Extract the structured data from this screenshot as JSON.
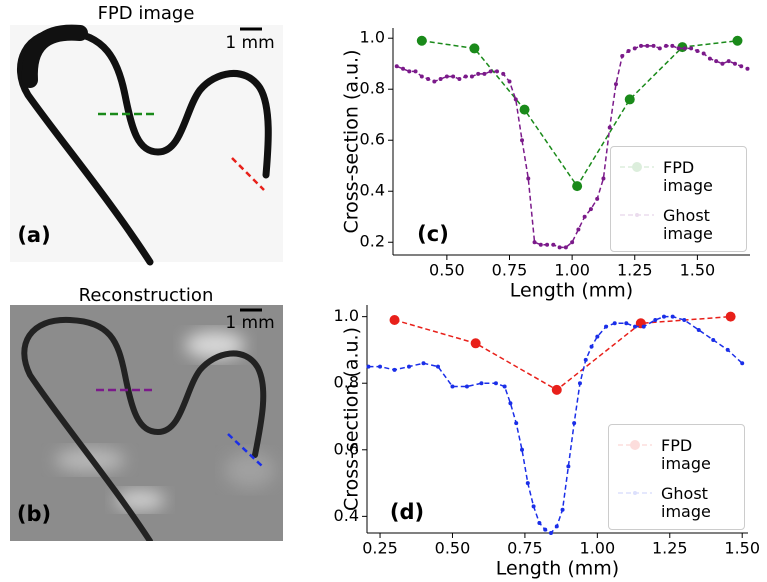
{
  "panels": [
    {
      "title": "FPD image",
      "scale_label": "1 mm",
      "label": "(a)"
    },
    {
      "title": "Reconstruction",
      "scale_label": "1 mm",
      "label": "(b)"
    }
  ],
  "chart_data": [
    {
      "type": "line",
      "label": "(c)",
      "xlabel": "Length (mm)",
      "ylabel": "Cross-section (a.u.)",
      "xlim": [
        0.285,
        1.71
      ],
      "ylim": [
        0.15,
        1.04
      ],
      "xticks": [
        {
          "value": 0.5,
          "label": "0.50"
        },
        0.75,
        {
          "value": 1,
          "label": "1.00"
        },
        1.25,
        {
          "value": 1.5,
          "label": "1.50"
        }
      ],
      "yticks": [
        0.2,
        0.4,
        0.6,
        0.8,
        {
          "value": 1,
          "label": "1.0"
        }
      ],
      "legend": "lower right",
      "series": [
        {
          "name": "FPD image",
          "color": "#1a8a1a",
          "x": [
            0.4,
            0.61,
            0.81,
            1.02,
            1.23,
            1.44,
            1.66
          ],
          "values": [
            0.99,
            0.96,
            0.72,
            0.42,
            0.76,
            0.965,
            0.99
          ]
        },
        {
          "name": "Ghost image",
          "color": "#7b1a8a",
          "x": [
            0.3,
            0.325,
            0.35,
            0.375,
            0.4,
            0.425,
            0.45,
            0.475,
            0.5,
            0.525,
            0.55,
            0.575,
            0.6,
            0.625,
            0.65,
            0.675,
            0.7,
            0.725,
            0.75,
            0.775,
            0.8,
            0.825,
            0.85,
            0.875,
            0.9,
            0.925,
            0.95,
            0.975,
            1.0,
            1.025,
            1.05,
            1.075,
            1.1,
            1.125,
            1.15,
            1.175,
            1.2,
            1.225,
            1.25,
            1.275,
            1.3,
            1.325,
            1.35,
            1.375,
            1.4,
            1.425,
            1.45,
            1.475,
            1.5,
            1.525,
            1.55,
            1.575,
            1.6,
            1.625,
            1.65,
            1.675,
            1.7
          ],
          "values": [
            0.89,
            0.88,
            0.87,
            0.87,
            0.85,
            0.84,
            0.83,
            0.84,
            0.85,
            0.85,
            0.84,
            0.85,
            0.85,
            0.86,
            0.86,
            0.87,
            0.87,
            0.86,
            0.83,
            0.76,
            0.6,
            0.45,
            0.2,
            0.19,
            0.19,
            0.19,
            0.18,
            0.18,
            0.2,
            0.25,
            0.3,
            0.33,
            0.37,
            0.45,
            0.65,
            0.82,
            0.93,
            0.95,
            0.96,
            0.97,
            0.97,
            0.97,
            0.96,
            0.97,
            0.97,
            0.96,
            0.96,
            0.96,
            0.95,
            0.94,
            0.92,
            0.91,
            0.9,
            0.91,
            0.9,
            0.89,
            0.88
          ]
        }
      ]
    },
    {
      "type": "line",
      "label": "(d)",
      "xlabel": "Length (mm)",
      "ylabel": "Cross-section (a.u.)",
      "xlim": [
        0.205,
        1.52
      ],
      "ylim": [
        0.35,
        1.035
      ],
      "xticks": [
        0.25,
        {
          "value": 0.5,
          "label": "0.50"
        },
        0.75,
        {
          "value": 1,
          "label": "1.00"
        },
        1.25,
        {
          "value": 1.5,
          "label": "1.50"
        }
      ],
      "yticks": [
        0.4,
        0.6,
        0.8,
        {
          "value": 1,
          "label": "1.0"
        }
      ],
      "legend": "lower right",
      "series": [
        {
          "name": "FPD image",
          "color": "#e8201a",
          "x": [
            0.3,
            0.58,
            0.86,
            1.15,
            1.46
          ],
          "values": [
            0.99,
            0.92,
            0.78,
            0.98,
            1.0
          ]
        },
        {
          "name": "Ghost image",
          "color": "#1a2ee8",
          "x": [
            0.21,
            0.25,
            0.3,
            0.35,
            0.4,
            0.45,
            0.5,
            0.55,
            0.6,
            0.65,
            0.68,
            0.7,
            0.72,
            0.74,
            0.76,
            0.78,
            0.8,
            0.82,
            0.84,
            0.86,
            0.88,
            0.9,
            0.92,
            0.94,
            0.96,
            0.98,
            1.0,
            1.03,
            1.06,
            1.1,
            1.13,
            1.16,
            1.2,
            1.23,
            1.26,
            1.3,
            1.35,
            1.4,
            1.45,
            1.5
          ],
          "values": [
            0.85,
            0.85,
            0.84,
            0.85,
            0.86,
            0.85,
            0.79,
            0.79,
            0.8,
            0.8,
            0.79,
            0.74,
            0.68,
            0.6,
            0.5,
            0.43,
            0.38,
            0.36,
            0.35,
            0.37,
            0.42,
            0.55,
            0.68,
            0.8,
            0.87,
            0.91,
            0.94,
            0.97,
            0.98,
            0.98,
            0.97,
            0.97,
            0.99,
            1.0,
            1.0,
            0.99,
            0.96,
            0.93,
            0.9,
            0.86
          ]
        }
      ]
    }
  ]
}
